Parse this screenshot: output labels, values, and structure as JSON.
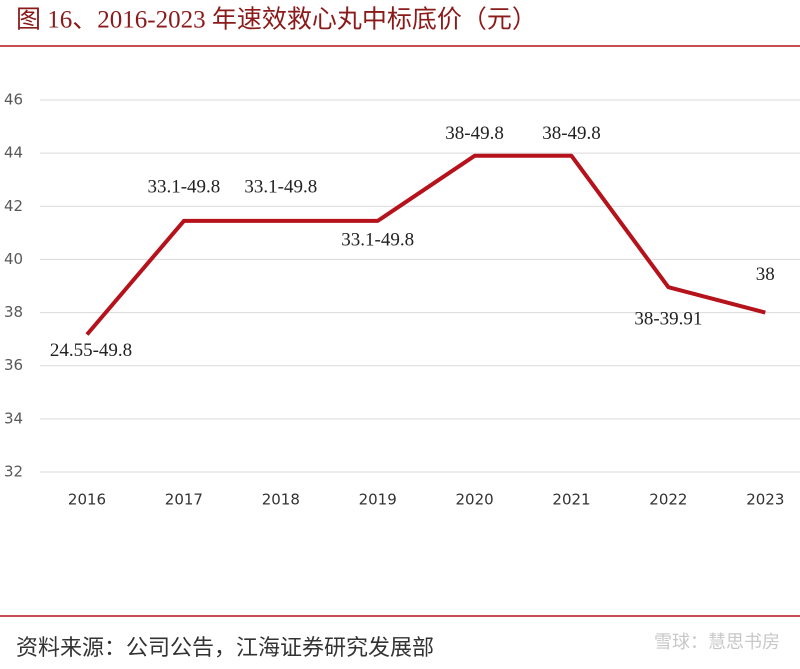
{
  "chart_data": {
    "type": "line",
    "title": "图 16、2016-2023 年速效救心丸中标底价（元）",
    "categories": [
      "2016",
      "2017",
      "2018",
      "2019",
      "2020",
      "2021",
      "2022",
      "2023"
    ],
    "series": [
      {
        "name": "中标底价",
        "color": "#b5121b",
        "values": [
          37.175,
          41.45,
          41.45,
          41.45,
          43.9,
          43.9,
          38.955,
          38
        ]
      }
    ],
    "annotations": [
      "24.55-49.8",
      "33.1-49.8",
      "33.1-49.8",
      "33.1-49.8",
      "38-49.8",
      "38-49.8",
      "38-39.91",
      "38"
    ],
    "ylim": [
      32,
      46
    ],
    "yticks": [
      32,
      34,
      36,
      38,
      40,
      42,
      44,
      46
    ],
    "grid": true,
    "source": "资料来源：公司公告，江海证券研究发展部",
    "watermark": "雪球：慧思书房"
  }
}
